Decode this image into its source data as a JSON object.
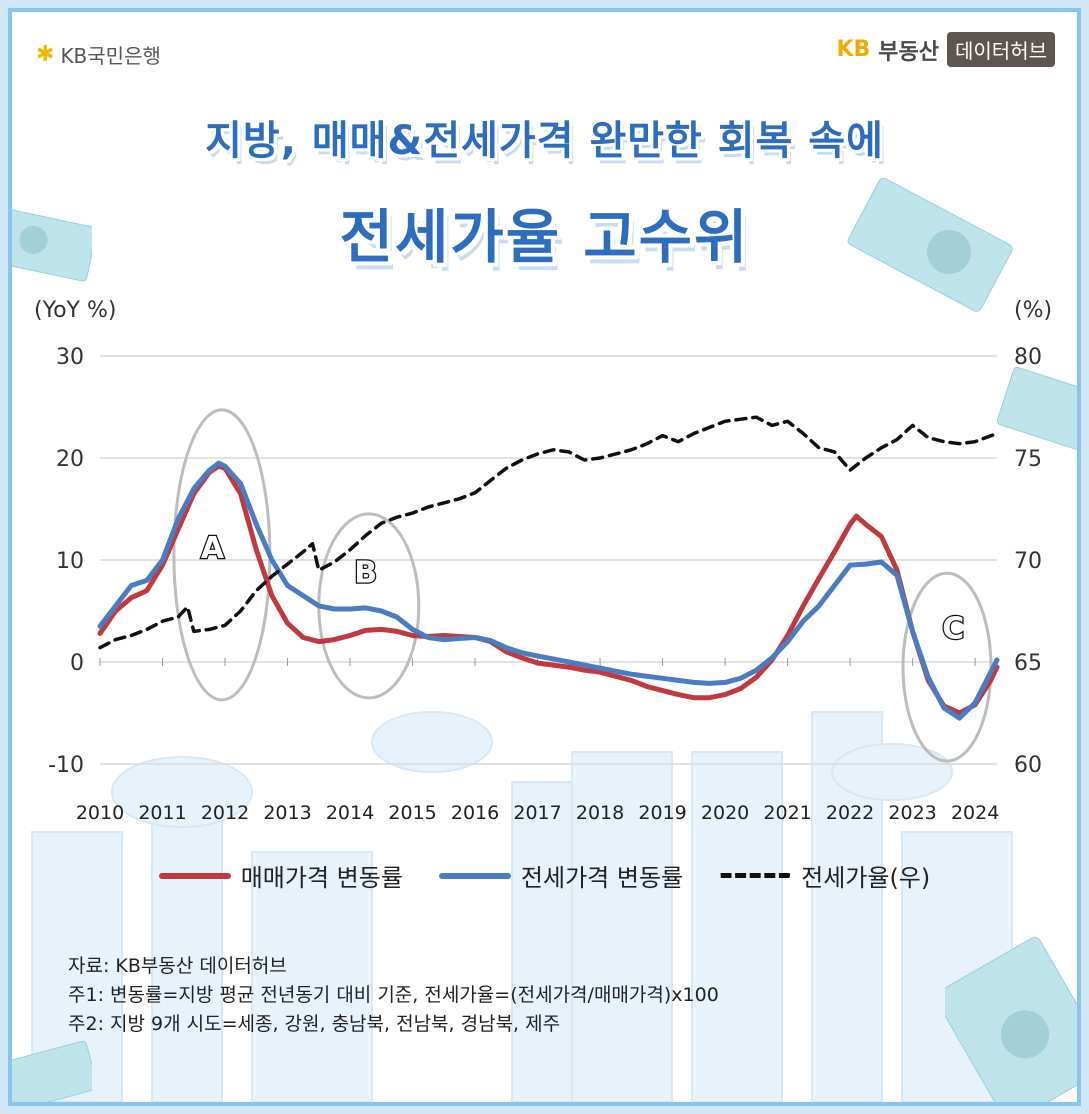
{
  "header": {
    "bank_logo_text": "KB국민은행",
    "hub_kb": "KB",
    "hub_real_estate": "부동산",
    "hub_badge": "데이터허브"
  },
  "title": {
    "line1": "지방, 매매&전세가격 완만한 회복 속에",
    "line2": "전세가율 고수위"
  },
  "colors": {
    "sale": "#c0393f",
    "jeonse": "#4a7cc2",
    "ratio": "#111111",
    "title": "#2d6dc0"
  },
  "chart_data": {
    "type": "line",
    "left_axis_unit": "(YoY %)",
    "right_axis_unit": "(%)",
    "left_ylim": [
      -10,
      30
    ],
    "right_ylim": [
      60,
      80
    ],
    "left_ticks": [
      "30",
      "20",
      "10",
      "0",
      "-10"
    ],
    "right_ticks": [
      "80",
      "75",
      "70",
      "65",
      "60"
    ],
    "x_ticks": [
      "2010",
      "2011",
      "2012",
      "2013",
      "2014",
      "2015",
      "2016",
      "2017",
      "2018",
      "2019",
      "2020",
      "2021",
      "2022",
      "2023",
      "2024"
    ],
    "grid": "horizontal",
    "legend_position": "bottom",
    "annotations": [
      "A",
      "B",
      "C"
    ],
    "series": [
      {
        "name": "매매가격 변동률",
        "axis": "left",
        "x": [
          2010.0,
          2010.25,
          2010.5,
          2010.75,
          2011.0,
          2011.25,
          2011.5,
          2011.75,
          2011.9,
          2012.0,
          2012.25,
          2012.5,
          2012.75,
          2013.0,
          2013.25,
          2013.5,
          2013.75,
          2014.0,
          2014.25,
          2014.5,
          2014.75,
          2015.0,
          2015.25,
          2015.5,
          2015.75,
          2016.0,
          2016.25,
          2016.5,
          2016.75,
          2017.0,
          2017.25,
          2017.5,
          2017.75,
          2018.0,
          2018.25,
          2018.5,
          2018.75,
          2019.0,
          2019.25,
          2019.5,
          2019.75,
          2020.0,
          2020.25,
          2020.5,
          2020.75,
          2021.0,
          2021.25,
          2021.5,
          2021.75,
          2022.0,
          2022.1,
          2022.25,
          2022.5,
          2022.75,
          2023.0,
          2023.25,
          2023.5,
          2023.75,
          2024.0,
          2024.25,
          2024.35
        ],
        "values": [
          2.8,
          5.0,
          6.3,
          7.0,
          9.5,
          13.0,
          16.5,
          18.6,
          19.2,
          19.0,
          16.5,
          11.0,
          6.5,
          3.8,
          2.4,
          2.0,
          2.2,
          2.6,
          3.1,
          3.2,
          3.0,
          2.6,
          2.5,
          2.6,
          2.5,
          2.4,
          2.0,
          1.0,
          0.4,
          -0.1,
          -0.3,
          -0.5,
          -0.8,
          -1.0,
          -1.4,
          -1.8,
          -2.4,
          -2.8,
          -3.2,
          -3.5,
          -3.5,
          -3.2,
          -2.6,
          -1.5,
          0.2,
          2.6,
          5.5,
          8.2,
          10.8,
          13.5,
          14.3,
          13.5,
          12.3,
          9.0,
          3.0,
          -1.8,
          -4.3,
          -5.0,
          -4.2,
          -1.8,
          -0.5
        ]
      },
      {
        "name": "전세가격 변동률",
        "axis": "left",
        "x": [
          2010.0,
          2010.25,
          2010.5,
          2010.75,
          2011.0,
          2011.25,
          2011.5,
          2011.75,
          2011.9,
          2012.0,
          2012.25,
          2012.5,
          2012.75,
          2013.0,
          2013.25,
          2013.5,
          2013.75,
          2014.0,
          2014.25,
          2014.5,
          2014.75,
          2015.0,
          2015.25,
          2015.5,
          2015.75,
          2016.0,
          2016.25,
          2016.5,
          2016.75,
          2017.0,
          2017.25,
          2017.5,
          2017.75,
          2018.0,
          2018.25,
          2018.5,
          2018.75,
          2019.0,
          2019.25,
          2019.5,
          2019.75,
          2020.0,
          2020.25,
          2020.5,
          2020.75,
          2021.0,
          2021.25,
          2021.5,
          2021.75,
          2022.0,
          2022.25,
          2022.5,
          2022.75,
          2023.0,
          2023.25,
          2023.5,
          2023.75,
          2024.0,
          2024.25,
          2024.35
        ],
        "values": [
          3.5,
          5.5,
          7.5,
          8.0,
          10.0,
          14.0,
          17.0,
          18.8,
          19.5,
          19.2,
          17.5,
          13.5,
          10.0,
          7.5,
          6.5,
          5.5,
          5.2,
          5.2,
          5.3,
          5.0,
          4.4,
          3.2,
          2.4,
          2.2,
          2.3,
          2.4,
          2.1,
          1.4,
          0.9,
          0.6,
          0.3,
          0.0,
          -0.3,
          -0.6,
          -0.9,
          -1.2,
          -1.4,
          -1.6,
          -1.8,
          -2.0,
          -2.1,
          -2.0,
          -1.6,
          -0.8,
          0.4,
          2.0,
          4.0,
          5.5,
          7.5,
          9.5,
          9.6,
          9.8,
          8.5,
          3.0,
          -1.5,
          -4.5,
          -5.5,
          -4.0,
          -1.0,
          0.2
        ]
      },
      {
        "name": "전세가율(우)",
        "axis": "right",
        "x": [
          2010.0,
          2010.25,
          2010.5,
          2010.75,
          2011.0,
          2011.25,
          2011.4,
          2011.5,
          2011.75,
          2012.0,
          2012.25,
          2012.5,
          2012.75,
          2013.0,
          2013.25,
          2013.4,
          2013.5,
          2013.75,
          2014.0,
          2014.25,
          2014.5,
          2014.75,
          2015.0,
          2015.25,
          2015.5,
          2015.75,
          2016.0,
          2016.25,
          2016.5,
          2016.75,
          2017.0,
          2017.25,
          2017.5,
          2017.75,
          2018.0,
          2018.25,
          2018.5,
          2018.75,
          2019.0,
          2019.25,
          2019.5,
          2019.75,
          2020.0,
          2020.25,
          2020.5,
          2020.75,
          2021.0,
          2021.25,
          2021.5,
          2021.75,
          2022.0,
          2022.25,
          2022.5,
          2022.75,
          2023.0,
          2023.25,
          2023.5,
          2023.75,
          2024.0,
          2024.35
        ],
        "values": [
          65.7,
          66.1,
          66.3,
          66.6,
          67.0,
          67.2,
          67.7,
          66.5,
          66.6,
          66.8,
          67.5,
          68.5,
          69.2,
          69.8,
          70.4,
          70.8,
          69.5,
          69.9,
          70.5,
          71.2,
          71.8,
          72.1,
          72.3,
          72.6,
          72.8,
          73.0,
          73.3,
          73.9,
          74.5,
          74.9,
          75.2,
          75.4,
          75.3,
          74.9,
          75.0,
          75.2,
          75.4,
          75.7,
          76.1,
          75.8,
          76.2,
          76.5,
          76.8,
          76.9,
          77.0,
          76.6,
          76.8,
          76.2,
          75.5,
          75.3,
          74.4,
          75.0,
          75.5,
          75.9,
          76.6,
          76.0,
          75.8,
          75.7,
          75.8,
          76.2
        ]
      }
    ]
  },
  "legend": {
    "sale": "매매가격 변동률",
    "jeonse": "전세가격 변동률",
    "ratio": "전세가율(우)"
  },
  "notes": {
    "source": "자료: KB부동산 데이터허브",
    "note1": "주1: 변동률=지방 평균 전년동기 대비 기준, 전세가율=(전세가격/매매가격)x100",
    "note2": "주2: 지방 9개 시도=세종, 강원, 충남북, 전남북, 경남북, 제주"
  }
}
